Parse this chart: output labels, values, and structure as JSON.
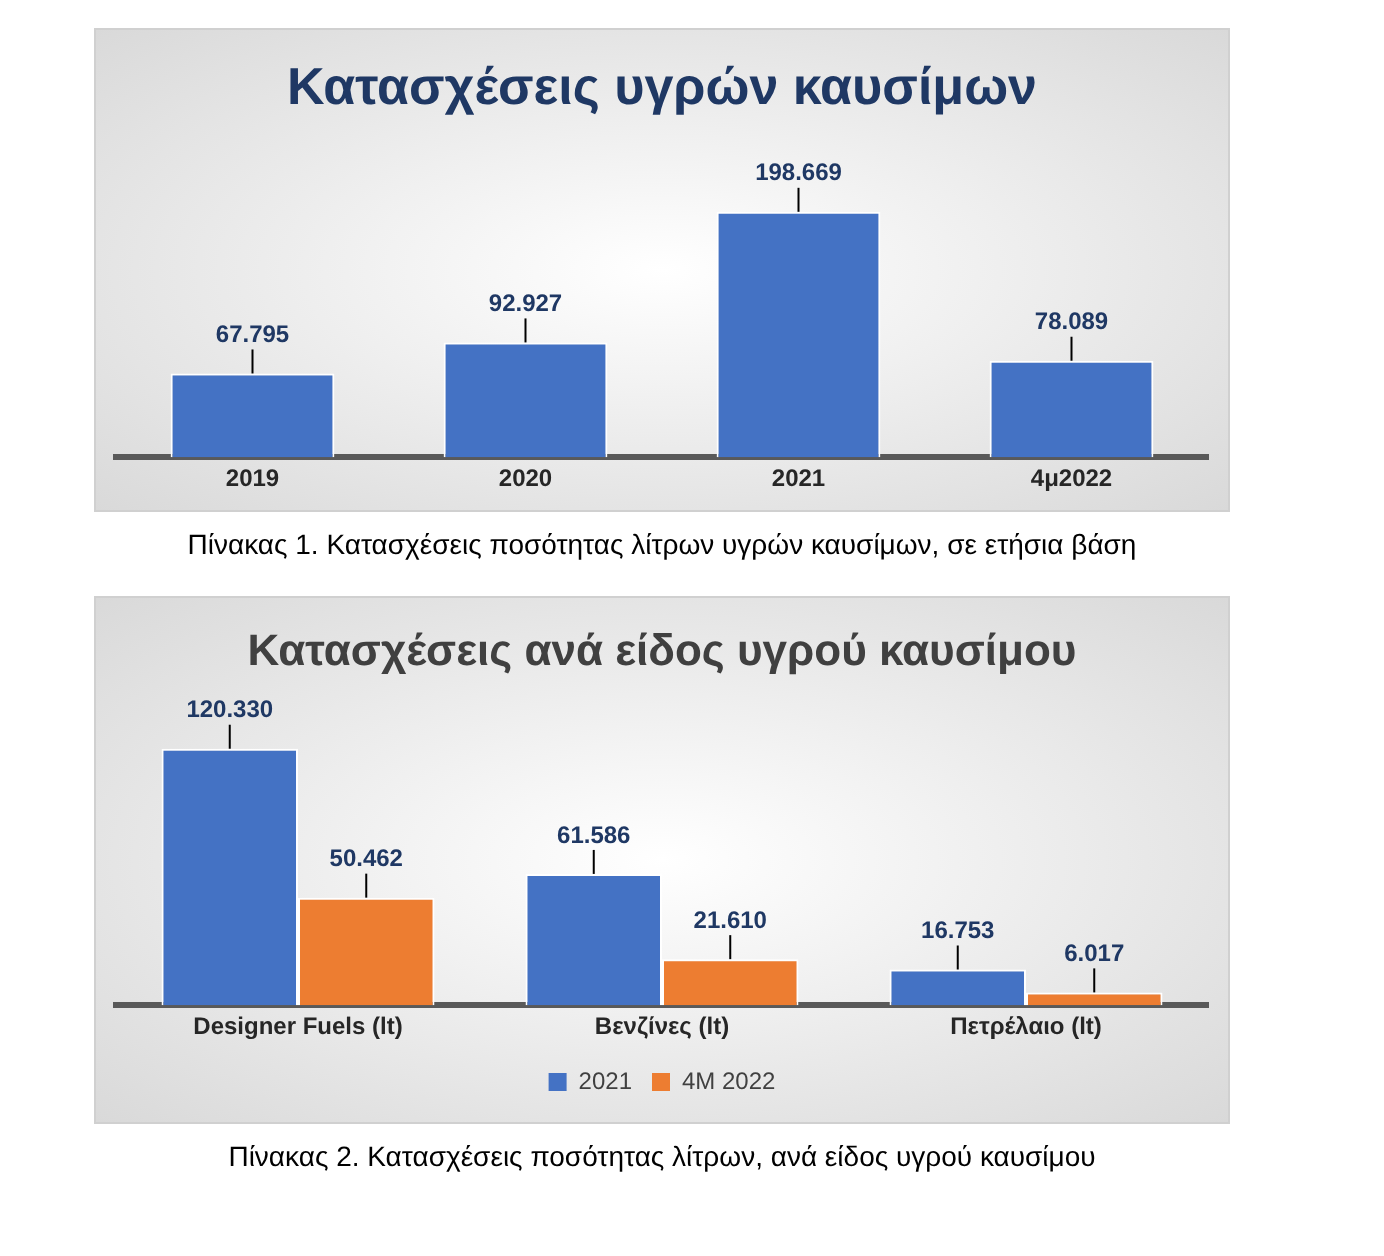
{
  "chart_data": [
    {
      "type": "bar",
      "title": "Κατασχέσεις υγρών καυσίμων",
      "categories": [
        "2019",
        "2020",
        "2021",
        "4μ2022"
      ],
      "values": [
        67795,
        92927,
        198669,
        78089
      ],
      "value_labels": [
        "67.795",
        "92.927",
        "198.669",
        "78.089"
      ],
      "color": "#4472c4",
      "grid": false,
      "legend": false,
      "annotations": [
        "Πίνακας 1. Κατασχέσεις ποσότητας λίτρων υγρών καυσίμων, σε ετήσια βάση"
      ]
    },
    {
      "type": "bar",
      "title": "Κατασχέσεις ανά είδος υγρού καυσίμου",
      "categories": [
        "Designer Fuels (lt)",
        "Βενζίνες (lt)",
        "Πετρέλαιο (lt)"
      ],
      "series": [
        {
          "name": "2021",
          "color": "#4472c4",
          "values": [
            120330,
            61586,
            16753
          ],
          "value_labels": [
            "120.330",
            "61.586",
            "16.753"
          ]
        },
        {
          "name": "4M 2022",
          "color": "#ed7d31",
          "values": [
            50462,
            21610,
            6017
          ],
          "value_labels": [
            "50.462",
            "21.610",
            "6.017"
          ]
        }
      ],
      "grid": false,
      "legend": "bottom",
      "annotations": [
        "Πίνακας 2. Κατασχέσεις ποσότητας λίτρων, ανά είδος υγρού καυσίμου"
      ]
    }
  ]
}
